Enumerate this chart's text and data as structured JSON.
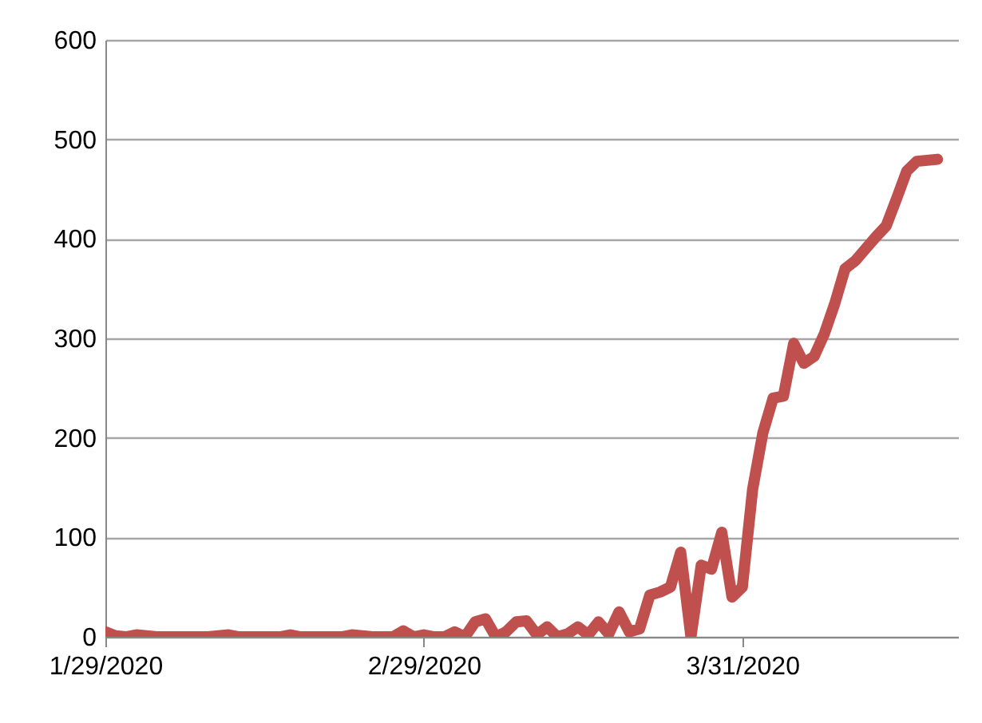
{
  "chart_data": {
    "type": "line",
    "x": [
      "2020-01-29",
      "2020-01-30",
      "2020-01-31",
      "2020-02-01",
      "2020-02-02",
      "2020-02-03",
      "2020-02-04",
      "2020-02-05",
      "2020-02-06",
      "2020-02-07",
      "2020-02-08",
      "2020-02-09",
      "2020-02-10",
      "2020-02-11",
      "2020-02-12",
      "2020-02-13",
      "2020-02-14",
      "2020-02-15",
      "2020-02-16",
      "2020-02-17",
      "2020-02-18",
      "2020-02-19",
      "2020-02-20",
      "2020-02-21",
      "2020-02-22",
      "2020-02-23",
      "2020-02-24",
      "2020-02-25",
      "2020-02-26",
      "2020-02-27",
      "2020-02-28",
      "2020-02-29",
      "2020-03-01",
      "2020-03-02",
      "2020-03-03",
      "2020-03-04",
      "2020-03-05",
      "2020-03-06",
      "2020-03-07",
      "2020-03-08",
      "2020-03-09",
      "2020-03-10",
      "2020-03-11",
      "2020-03-12",
      "2020-03-13",
      "2020-03-14",
      "2020-03-15",
      "2020-03-16",
      "2020-03-17",
      "2020-03-18",
      "2020-03-19",
      "2020-03-20",
      "2020-03-21",
      "2020-03-22",
      "2020-03-23",
      "2020-03-24",
      "2020-03-25",
      "2020-03-26",
      "2020-03-27",
      "2020-03-28",
      "2020-03-29",
      "2020-03-30",
      "2020-03-31",
      "2020-04-01",
      "2020-04-02",
      "2020-04-03",
      "2020-04-04",
      "2020-04-05",
      "2020-04-06",
      "2020-04-07",
      "2020-04-08",
      "2020-04-09",
      "2020-04-10",
      "2020-04-11",
      "2020-04-12",
      "2020-04-13",
      "2020-04-14",
      "2020-04-15",
      "2020-04-16",
      "2020-04-17",
      "2020-04-18",
      "2020-04-19"
    ],
    "series": [
      {
        "color": "#c0504d",
        "values": [
          5,
          1,
          0,
          2,
          1,
          0,
          0,
          0,
          0,
          0,
          0,
          1,
          2,
          0,
          0,
          0,
          0,
          0,
          2,
          0,
          0,
          0,
          0,
          0,
          2,
          1,
          0,
          0,
          0,
          6,
          0,
          2,
          0,
          0,
          5,
          0,
          15,
          18,
          0,
          5,
          15,
          16,
          2,
          10,
          0,
          3,
          10,
          2,
          15,
          3,
          25,
          5,
          8,
          42,
          45,
          50,
          85,
          0,
          72,
          68,
          105,
          40,
          50,
          148,
          205,
          240,
          242,
          295,
          275,
          282,
          305,
          335,
          370,
          378,
          390,
          402,
          413,
          440,
          468,
          478,
          479,
          480
        ]
      }
    ],
    "xlim": [
      "2020-01-29",
      "2020-04-21"
    ],
    "xticks": [
      {
        "value": "2020-01-29",
        "label": "1/29/2020"
      },
      {
        "value": "2020-02-29",
        "label": "2/29/2020"
      },
      {
        "value": "2020-03-31",
        "label": "3/31/2020"
      }
    ],
    "ylim": [
      0,
      600
    ],
    "yticks": [
      0,
      100,
      200,
      300,
      400,
      500,
      600
    ],
    "grid": "y",
    "marker": "none",
    "line_style": "solid"
  }
}
